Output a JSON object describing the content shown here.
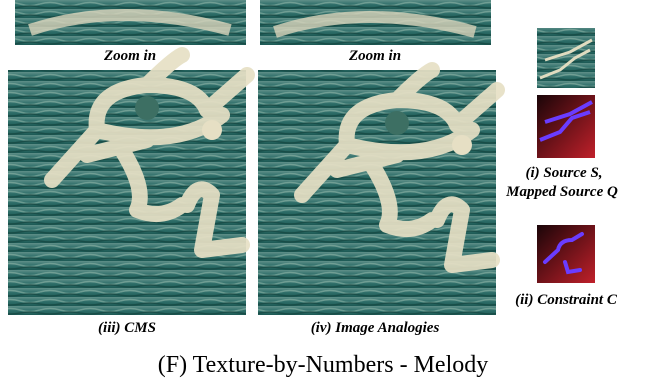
{
  "zoom_labels": [
    "Zoom in",
    "Zoom in"
  ],
  "results": [
    {
      "caption": "(iii) CMS"
    },
    {
      "caption": "(iv) Image Analogies"
    }
  ],
  "inputs": {
    "source_caption": [
      "(i) Source S,",
      "Mapped Source Q"
    ],
    "constraint_caption": "(ii) Constraint C"
  },
  "figure_caption": "(F) Texture-by-Numbers - Melody"
}
